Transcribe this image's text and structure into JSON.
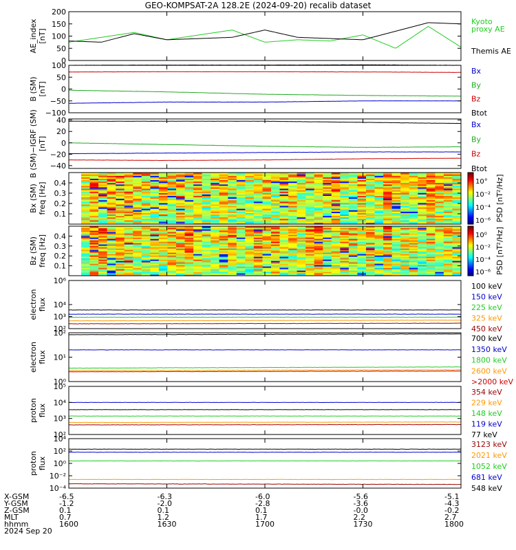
{
  "title": "GEO-KOMPSAT-2A 128.2E (2024-09-20) recalib dataset",
  "panels": [
    {
      "id": "ae",
      "ylabel": [
        "AE_index",
        "[nT]"
      ],
      "log": false,
      "ylim": [
        0,
        200
      ],
      "ticks": [
        "200",
        "150",
        "100",
        "50",
        "0"
      ],
      "tickvals": [
        200,
        150,
        100,
        50,
        0
      ],
      "legend": [
        {
          "text": "Kyoto",
          "color": "#22cc22"
        },
        {
          "text": "proxy AE",
          "color": "#22cc22"
        },
        {
          "text": "",
          "color": "#000000"
        },
        {
          "text": "Themis AE",
          "color": "#000000"
        }
      ]
    },
    {
      "id": "bsm",
      "ylabel": [
        "B (SM)",
        "[nT]"
      ],
      "log": false,
      "ylim": [
        -100,
        100
      ],
      "ticks": [
        "100",
        "50",
        "0",
        "−50",
        "−100"
      ],
      "tickvals": [
        100,
        50,
        0,
        -50,
        -100
      ],
      "legend": [
        {
          "text": "Bx",
          "color": "#0000cc"
        },
        {
          "text": "By",
          "color": "#22aa22"
        },
        {
          "text": "Bz",
          "color": "#cc0000"
        },
        {
          "text": "Btot",
          "color": "#000000"
        }
      ]
    },
    {
      "id": "bigrf",
      "ylabel": [
        "B (SM)−IGRF (SM)",
        "[nT]"
      ],
      "log": false,
      "ylim": [
        -45,
        42
      ],
      "ticks": [
        "40",
        "20",
        "0",
        "−20",
        "−40"
      ],
      "tickvals": [
        40,
        20,
        0,
        -20,
        -40
      ],
      "legend": [
        {
          "text": "Bx",
          "color": "#0000cc"
        },
        {
          "text": "By",
          "color": "#22aa22"
        },
        {
          "text": "Bz",
          "color": "#cc0000"
        },
        {
          "text": "Btot",
          "color": "#000000"
        }
      ]
    },
    {
      "id": "bxpsd",
      "ylabel": [
        "Bx (SM)",
        "freq [Hz]"
      ],
      "spectrogram": true,
      "ylim": [
        0,
        0.5
      ],
      "ticks": [
        "0.4",
        "0.3",
        "0.2",
        "0.1"
      ],
      "tickvals": [
        0.4,
        0.3,
        0.2,
        0.1
      ],
      "colorbar": {
        "label": "PSD [nT²/Hz]",
        "ticks": [
          "10°",
          "10⁻²",
          "10⁻⁴",
          "10⁻⁶"
        ]
      }
    },
    {
      "id": "bzpsd",
      "ylabel": [
        "Bz (SM)",
        "freq [Hz]"
      ],
      "spectrogram": true,
      "ylim": [
        0,
        0.5
      ],
      "ticks": [
        "0.4",
        "0.3",
        "0.2",
        "0.1"
      ],
      "tickvals": [
        0.4,
        0.3,
        0.2,
        0.1
      ],
      "colorbar": {
        "label": "PSD [nT²/Hz]",
        "ticks": [
          "10⁰",
          "10⁻²",
          "10⁻⁴",
          "10⁻⁶"
        ]
      }
    },
    {
      "id": "eflux1",
      "ylabel": [
        "electron",
        "flux"
      ],
      "log": true,
      "ylim": [
        2,
        6
      ],
      "ticks": [
        "10⁶",
        "10⁴",
        "10³",
        "10²"
      ],
      "tickvals": [
        6,
        4,
        3,
        2
      ],
      "legend": [
        {
          "text": "100 keV",
          "color": "#000000"
        },
        {
          "text": "150 keV",
          "color": "#0000cc"
        },
        {
          "text": "225 keV",
          "color": "#22cc22"
        },
        {
          "text": "325 keV",
          "color": "#ff9900"
        },
        {
          "text": "450 keV",
          "color": "#990000"
        }
      ]
    },
    {
      "id": "eflux2",
      "ylabel": [
        "electron",
        "flux"
      ],
      "log": true,
      "ylim": [
        0,
        2
      ],
      "ticks": [
        "10²",
        "10¹",
        "10⁰"
      ],
      "tickvals": [
        2,
        1,
        0
      ],
      "legend": [
        {
          "text": "700 keV",
          "color": "#000000"
        },
        {
          "text": "1350 keV",
          "color": "#0000cc"
        },
        {
          "text": "1800 keV",
          "color": "#22cc22"
        },
        {
          "text": "2600 keV",
          "color": "#ff9900"
        },
        {
          "text": ">2000 keV",
          "color": "#cc0000"
        }
      ]
    },
    {
      "id": "pflux1",
      "ylabel": [
        "proton",
        "flux"
      ],
      "log": true,
      "ylim": [
        2,
        5
      ],
      "ticks": [
        "10⁵",
        "10⁴",
        "10³",
        "10²"
      ],
      "tickvals": [
        5,
        4,
        3,
        2
      ],
      "legend": [
        {
          "text": "354 keV",
          "color": "#990000"
        },
        {
          "text": "229 keV",
          "color": "#ff9900"
        },
        {
          "text": "148 keV",
          "color": "#22cc22"
        },
        {
          "text": "119 keV",
          "color": "#0000cc"
        },
        {
          "text": "77 keV",
          "color": "#000000"
        }
      ]
    },
    {
      "id": "pflux2",
      "ylabel": [
        "proton",
        "flux"
      ],
      "log": true,
      "ylim": [
        -4,
        4
      ],
      "ticks": [
        "10⁴",
        "10²",
        "10⁰",
        "10⁻²",
        "10⁻⁴"
      ],
      "tickvals": [
        4,
        2,
        0,
        -2,
        -4
      ],
      "legend": [
        {
          "text": "3123 keV",
          "color": "#990000"
        },
        {
          "text": "2021 keV",
          "color": "#ff9900"
        },
        {
          "text": "1052 keV",
          "color": "#22cc22"
        },
        {
          "text": "681 keV",
          "color": "#0000cc"
        },
        {
          "text": "548 keV",
          "color": "#000000"
        }
      ]
    }
  ],
  "ephemeris": {
    "labels": [
      "X-GSM",
      "Y-GSM",
      "Z-GSM",
      "MLT",
      "hhmm",
      "2024 Sep 20"
    ],
    "columns": [
      {
        "x": [
          "-6.5",
          "-1.2",
          "0.1",
          "0.7",
          "1600"
        ]
      },
      {
        "x": [
          "-6.3",
          "-2.0",
          "0.1",
          "1.2",
          "1630"
        ]
      },
      {
        "x": [
          "-6.0",
          "-2.8",
          "0.1",
          "1.7",
          "1700"
        ]
      },
      {
        "x": [
          "-5.6",
          "-3.6",
          "-0.0",
          "2.2",
          "1730"
        ]
      },
      {
        "x": [
          "-5.1",
          "-4.3",
          "-0.2",
          "2.7",
          "1800"
        ]
      }
    ]
  },
  "chart_data": [
    {
      "type": "line",
      "title": "AE_index",
      "ylabel": "[nT]",
      "ylim": [
        0,
        200
      ],
      "x": [
        "1600",
        "1610",
        "1620",
        "1630",
        "1640",
        "1650",
        "1700",
        "1710",
        "1720",
        "1730",
        "1740",
        "1750",
        "1800"
      ],
      "series": [
        {
          "name": "Kyoto proxy AE",
          "color": "#22cc22",
          "values": [
            75,
            95,
            115,
            85,
            105,
            125,
            75,
            85,
            80,
            105,
            50,
            140,
            55
          ]
        },
        {
          "name": "Themis AE",
          "color": "#000000",
          "values": [
            80,
            75,
            110,
            85,
            90,
            95,
            125,
            95,
            90,
            85,
            120,
            155,
            150
          ]
        }
      ]
    },
    {
      "type": "line",
      "title": "B (SM)",
      "ylabel": "[nT]",
      "ylim": [
        -100,
        100
      ],
      "x": [
        "1600",
        "1630",
        "1700",
        "1730",
        "1800"
      ],
      "series": [
        {
          "name": "Bx",
          "color": "#0000cc",
          "values": [
            -60,
            -55,
            -55,
            -50,
            -50
          ]
        },
        {
          "name": "By",
          "color": "#22aa22",
          "values": [
            -5,
            -12,
            -22,
            -27,
            -30
          ]
        },
        {
          "name": "Bz",
          "color": "#cc0000",
          "values": [
            72,
            73,
            73,
            72,
            70
          ]
        },
        {
          "name": "Btot",
          "color": "#000000",
          "values": [
            100,
            101,
            101,
            102,
            100
          ]
        }
      ]
    },
    {
      "type": "line",
      "title": "B (SM)-IGRF (SM)",
      "ylabel": "[nT]",
      "ylim": [
        -45,
        42
      ],
      "x": [
        "1600",
        "1630",
        "1700",
        "1730",
        "1800"
      ],
      "series": [
        {
          "name": "Bx",
          "color": "#0000cc",
          "values": [
            -19,
            -18,
            -17,
            -16,
            -16
          ]
        },
        {
          "name": "By",
          "color": "#22aa22",
          "values": [
            0,
            -3,
            -6,
            -8,
            -7
          ]
        },
        {
          "name": "Bz",
          "color": "#cc0000",
          "values": [
            -30,
            -31,
            -30,
            -28,
            -27
          ]
        },
        {
          "name": "Btot",
          "color": "#000000",
          "values": [
            38,
            38,
            38,
            36,
            34
          ]
        }
      ]
    },
    {
      "type": "heatmap",
      "title": "Bx (SM)",
      "ylabel": "freq [Hz]",
      "ylim": [
        0,
        0.5
      ],
      "x": [
        "1600",
        "1800"
      ],
      "colorbar_label": "PSD [nT²/Hz]",
      "seed": 7
    },
    {
      "type": "heatmap",
      "title": "Bz (SM)",
      "ylabel": "freq [Hz]",
      "ylim": [
        0,
        0.5
      ],
      "x": [
        "1600",
        "1800"
      ],
      "colorbar_label": "PSD [nT²/Hz]",
      "seed": 13
    },
    {
      "type": "line",
      "title": "electron flux",
      "log": true,
      "x": [
        "1600",
        "1800"
      ],
      "series": [
        {
          "name": "100 keV",
          "color": "#000000",
          "values_log10": [
            3.55,
            3.55
          ]
        },
        {
          "name": "150 keV",
          "color": "#0000cc",
          "values_log10": [
            3.2,
            3.2
          ]
        },
        {
          "name": "225 keV",
          "color": "#22cc22",
          "values_log10": [
            2.95,
            2.95
          ]
        },
        {
          "name": "325 keV",
          "color": "#ff9900",
          "values_log10": [
            2.65,
            2.7
          ]
        },
        {
          "name": "450 keV",
          "color": "#990000",
          "values_log10": [
            2.4,
            2.45
          ]
        }
      ]
    },
    {
      "type": "line",
      "title": "electron flux",
      "log": true,
      "x": [
        "1600",
        "1800"
      ],
      "series": [
        {
          "name": "700 keV",
          "color": "#000000",
          "values_log10": [
            1.92,
            1.95
          ]
        },
        {
          "name": "1350 keV",
          "color": "#0000cc",
          "values_log10": [
            1.3,
            1.3
          ]
        },
        {
          "name": "1800 keV",
          "color": "#22cc22",
          "values_log10": [
            0.55,
            0.6
          ]
        },
        {
          "name": "2600 keV",
          "color": "#ff9900",
          "values_log10": [
            0.45,
            0.48
          ]
        },
        {
          "name": ">2000 keV",
          "color": "#cc0000",
          "values_log10": [
            0.4,
            0.43
          ]
        }
      ]
    },
    {
      "type": "line",
      "title": "proton flux",
      "log": true,
      "x": [
        "1600",
        "1800"
      ],
      "series": [
        {
          "name": "354 keV",
          "color": "#990000",
          "values_log10": [
            2.6,
            2.62
          ]
        },
        {
          "name": "229 keV",
          "color": "#ff9900",
          "values_log10": [
            2.75,
            2.78
          ]
        },
        {
          "name": "148 keV",
          "color": "#22cc22",
          "values_log10": [
            3.15,
            3.15
          ]
        },
        {
          "name": "119 keV",
          "color": "#0000cc",
          "values_log10": [
            4.0,
            4.0
          ]
        },
        {
          "name": "77 keV",
          "color": "#000000",
          "values_log10": [
            3.55,
            3.55
          ]
        }
      ]
    },
    {
      "type": "line",
      "title": "proton flux",
      "log": true,
      "x": [
        "1600",
        "1800"
      ],
      "series": [
        {
          "name": "3123 keV",
          "color": "#990000",
          "values_log10": [
            -3.3,
            -3.4
          ]
        },
        {
          "name": "2021 keV",
          "color": "#ff9900",
          "values_log10": [
            -2.6,
            -2.6
          ]
        },
        {
          "name": "1052 keV",
          "color": "#22cc22",
          "values_log10": [
            0.4,
            0.4
          ]
        },
        {
          "name": "681 keV",
          "color": "#0000cc",
          "values_log10": [
            1.8,
            1.8
          ]
        },
        {
          "name": "548 keV",
          "color": "#000000",
          "values_log10": [
            2.3,
            2.3
          ]
        }
      ]
    }
  ]
}
